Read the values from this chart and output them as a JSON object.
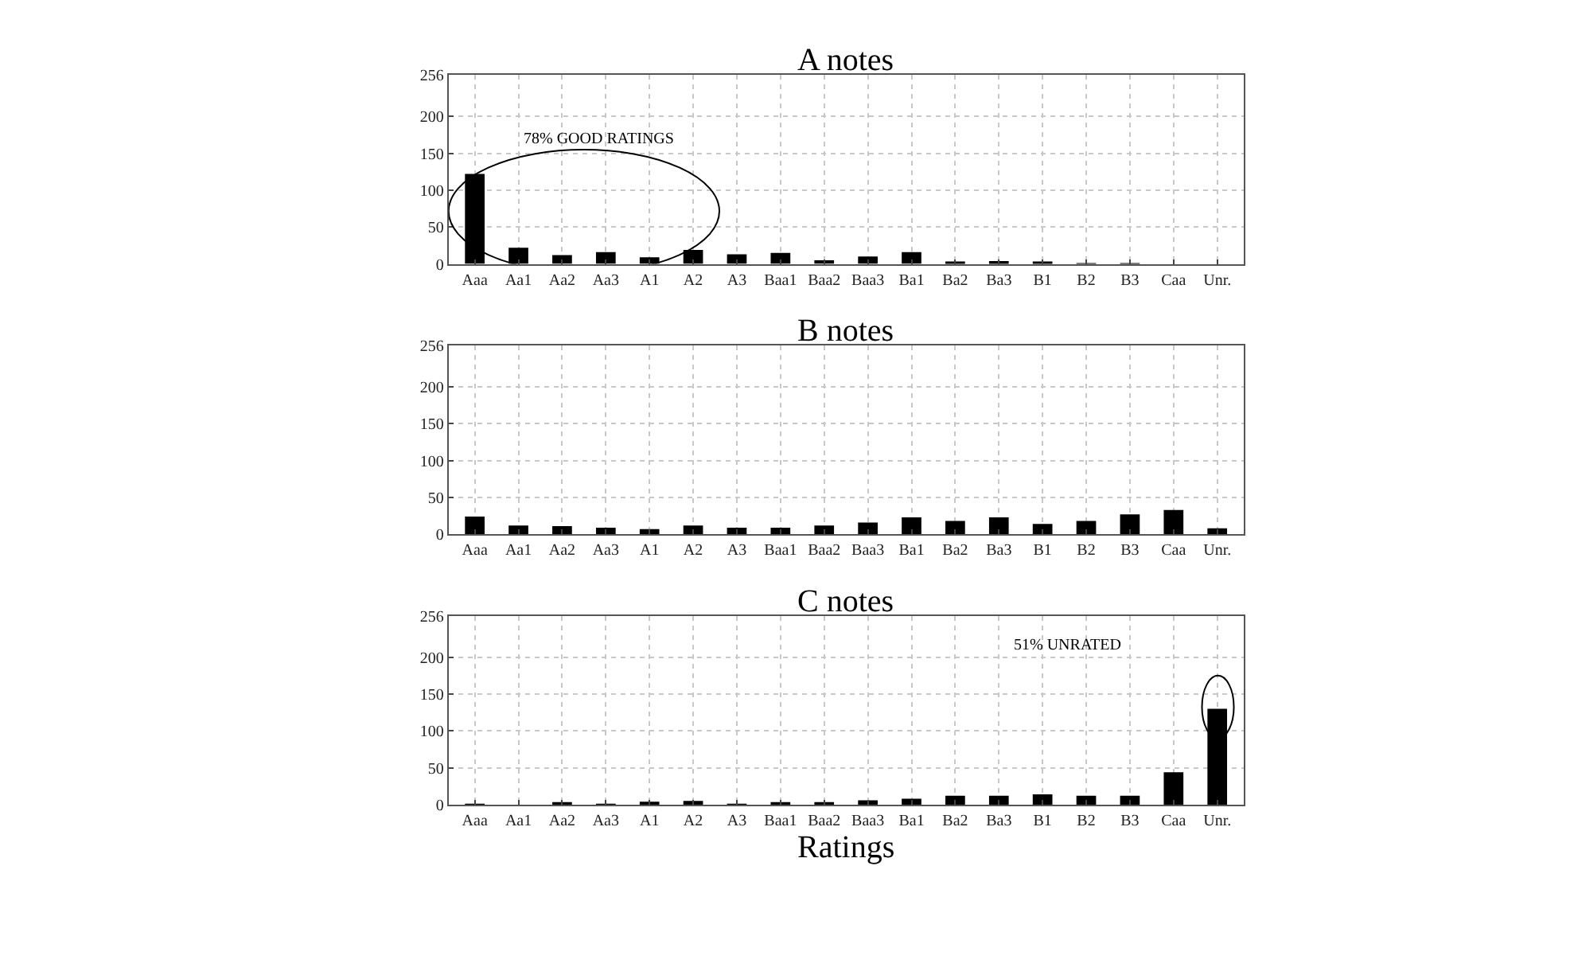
{
  "chart_data": [
    {
      "type": "bar",
      "title": "A notes",
      "categories": [
        "Aaa",
        "Aa1",
        "Aa2",
        "Aa3",
        "A1",
        "A2",
        "A3",
        "Baa1",
        "Baa2",
        "Baa3",
        "Ba1",
        "Ba2",
        "Ba3",
        "B1",
        "B2",
        "B3",
        "Caa",
        "Unr."
      ],
      "values": [
        122,
        22,
        12,
        16,
        9,
        19,
        13,
        15,
        5,
        10,
        16,
        3,
        4,
        2,
        1,
        1,
        0,
        0
      ],
      "color": "#000000",
      "ylim": [
        0,
        256
      ],
      "yticks": [
        0,
        50,
        100,
        150,
        200,
        256
      ],
      "grid": true,
      "annotations": [
        "78% GOOD RATINGS"
      ]
    },
    {
      "type": "bar",
      "title": "B notes",
      "categories": [
        "Aaa",
        "Aa1",
        "Aa2",
        "Aa3",
        "A1",
        "A2",
        "A3",
        "Baa1",
        "Baa2",
        "Baa3",
        "Ba1",
        "Ba2",
        "Ba3",
        "B1",
        "B2",
        "B3",
        "Caa",
        "Unr."
      ],
      "values": [
        24,
        12,
        11,
        9,
        7,
        12,
        9,
        9,
        12,
        16,
        23,
        18,
        23,
        14,
        18,
        27,
        33,
        8
      ],
      "color": "#000000",
      "ylim": [
        0,
        256
      ],
      "yticks": [
        0,
        50,
        100,
        150,
        200,
        256
      ],
      "grid": true
    },
    {
      "type": "bar",
      "title": "C notes",
      "xlabel": "Ratings",
      "categories": [
        "Aaa",
        "Aa1",
        "Aa2",
        "Aa3",
        "A1",
        "A2",
        "A3",
        "Baa1",
        "Baa2",
        "Baa3",
        "Ba1",
        "Ba2",
        "Ba3",
        "B1",
        "B2",
        "B3",
        "Caa",
        "Unr."
      ],
      "values": [
        1,
        0,
        3,
        1,
        4,
        5,
        1,
        3,
        2,
        6,
        8,
        12,
        12,
        14,
        12,
        12,
        44,
        130
      ],
      "color": "#000000",
      "ylim": [
        0,
        256
      ],
      "yticks": [
        0,
        50,
        100,
        150,
        200,
        256
      ],
      "grid": true,
      "annotations": [
        "51% UNRATED"
      ]
    }
  ]
}
